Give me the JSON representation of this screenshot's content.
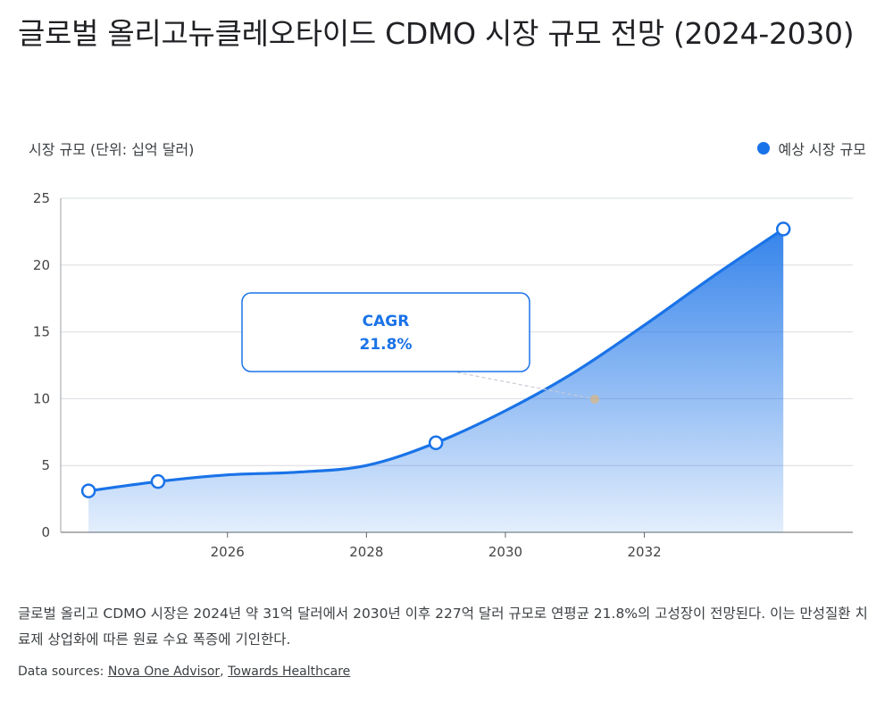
{
  "title": "글로벌 올리고뉴클레오타이드 CDMO 시장 규모 전망 (2024-2030)",
  "unit_label": "시장 규모 (단위: 십억 달러)",
  "legend_label": "예상 시장 규모",
  "accent_color": "#1a73e8",
  "callout": {
    "label": "CAGR",
    "value": "21.8%"
  },
  "description": "글로벌 올리고 CDMO 시장은 2024년 약 31억 달러에서 2030년 이후 227억 달러 규모로 연평균 21.8%의 고성장이 전망된다. 이는 만성질환 치료제 상업화에 따른 원료 수요 폭증에 기인한다.",
  "sources": {
    "prefix": "Data sources: ",
    "links": [
      "Nova One Advisor",
      "Towards Healthcare"
    ],
    "separator": ", "
  },
  "chart_data": {
    "type": "area",
    "title": "글로벌 올리고뉴클레오타이드 CDMO 시장 규모 전망 (2024-2030)",
    "ylabel": "시장 규모 (단위: 십억 달러)",
    "xlabel": "",
    "xlim": [
      2023.6,
      2035.0
    ],
    "ylim": [
      0,
      25
    ],
    "yticks": [
      0,
      5,
      10,
      15,
      20,
      25
    ],
    "xticks": [
      2026,
      2028,
      2030,
      2032
    ],
    "grid": true,
    "legend_position": "top-right",
    "series": [
      {
        "name": "예상 시장 규모",
        "points": [
          {
            "x": 2024.0,
            "y": 3.1,
            "marker": true
          },
          {
            "x": 2025.0,
            "y": 3.8,
            "marker": true
          },
          {
            "x": 2026.0,
            "y": 4.3,
            "marker": false
          },
          {
            "x": 2027.0,
            "y": 4.5,
            "marker": false
          },
          {
            "x": 2028.0,
            "y": 5.0,
            "marker": false
          },
          {
            "x": 2029.0,
            "y": 6.7,
            "marker": true
          },
          {
            "x": 2030.0,
            "y": 9.1,
            "marker": false
          },
          {
            "x": 2031.0,
            "y": 12.0,
            "marker": false
          },
          {
            "x": 2032.0,
            "y": 15.5,
            "marker": false
          },
          {
            "x": 2033.0,
            "y": 19.2,
            "marker": false
          },
          {
            "x": 2034.0,
            "y": 22.7,
            "marker": true
          }
        ]
      }
    ]
  }
}
